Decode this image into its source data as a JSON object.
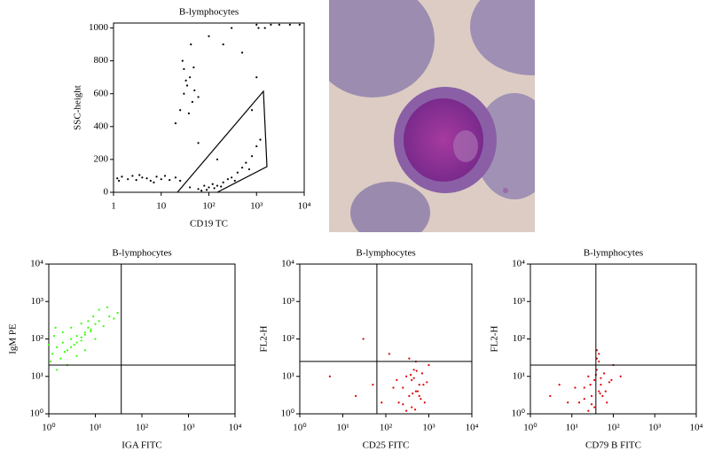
{
  "chart_data": [
    {
      "type": "scatter",
      "title": "B-lymphocytes",
      "x_label": "CD19 TC",
      "y_label": "SSC-height",
      "xscale": "log",
      "yscale": "linear",
      "xlim": [
        1,
        10000
      ],
      "ylim": [
        0,
        1030
      ],
      "xticks": [
        1,
        10,
        {
          "value": 100,
          "label": "10²"
        },
        {
          "value": 1000,
          "label": "10³"
        },
        {
          "value": 10000,
          "label": "10⁴"
        }
      ],
      "yticks": [
        0,
        200,
        400,
        600,
        800,
        1000
      ],
      "series": [
        {
          "color": "#000000",
          "x": [
            1.2,
            1.5,
            2,
            2.5,
            3,
            4,
            5,
            6,
            8,
            10,
            12,
            15,
            20,
            25,
            1.3,
            3.5,
            7,
            25,
            30,
            35,
            40,
            45,
            30,
            50,
            38,
            28,
            42,
            20,
            60,
            33,
            48,
            40,
            60,
            80,
            100,
            120,
            150,
            200,
            250,
            300,
            400,
            500,
            600,
            800,
            1000,
            1200,
            70,
            90,
            130,
            180,
            350,
            700,
            100,
            200,
            500,
            1000,
            1100,
            1500,
            300,
            800,
            60,
            150,
            1000,
            2000,
            3000,
            5000,
            8000
          ],
          "values": [
            85,
            95,
            80,
            100,
            75,
            90,
            85,
            70,
            95,
            80,
            100,
            75,
            90,
            70,
            70,
            105,
            60,
            500,
            600,
            650,
            700,
            550,
            750,
            620,
            480,
            800,
            900,
            420,
            580,
            680,
            760,
            30,
            20,
            40,
            30,
            50,
            40,
            60,
            80,
            90,
            120,
            150,
            180,
            220,
            280,
            320,
            10,
            15,
            25,
            35,
            70,
            140,
            950,
            900,
            850,
            700,
            1000,
            1000,
            1000,
            500,
            300,
            200,
            1020,
            1020,
            1020,
            1020,
            1020
          ]
        }
      ]
    },
    {
      "type": "scatter",
      "title": "B-lymphocytes",
      "x_label": "IGA FITC",
      "y_label": "IgM PE",
      "xscale": "log",
      "yscale": "log",
      "xlim": [
        1,
        10000
      ],
      "ylim": [
        1,
        10000
      ],
      "xticks": [
        {
          "value": 1,
          "label": "10⁰"
        },
        {
          "value": 10,
          "label": "10¹"
        },
        {
          "value": 100,
          "label": "10²"
        },
        {
          "value": 1000,
          "label": "10³"
        },
        {
          "value": 10000,
          "label": "10⁴"
        }
      ],
      "yticks": [
        {
          "value": 1,
          "label": "10⁰"
        },
        {
          "value": 10,
          "label": "10¹"
        },
        {
          "value": 100,
          "label": "10²"
        },
        {
          "value": 1000,
          "label": "10³"
        },
        {
          "value": 10000,
          "label": "10⁴"
        }
      ],
      "quadrant": {
        "x": 36,
        "y": 20
      },
      "series": [
        {
          "color": "#33ff00",
          "x": [
            1.2,
            1.5,
            2,
            2.5,
            3,
            3.5,
            4,
            5,
            6,
            7,
            8,
            10,
            12,
            15,
            20,
            25,
            30,
            1.1,
            1.8,
            2.2,
            3,
            4,
            5,
            6,
            8,
            10,
            1.3,
            2,
            3,
            5,
            7,
            9,
            1.5,
            2.5,
            4,
            6,
            12,
            18,
            1,
            1.4
          ],
          "values": [
            40,
            60,
            80,
            50,
            100,
            70,
            120,
            90,
            150,
            200,
            180,
            250,
            300,
            220,
            400,
            350,
            500,
            25,
            30,
            45,
            60,
            80,
            110,
            130,
            160,
            100,
            120,
            150,
            200,
            260,
            300,
            400,
            15,
            20,
            35,
            50,
            600,
            700,
            70,
            200
          ]
        }
      ]
    },
    {
      "type": "scatter",
      "title": "B-lymphocytes",
      "x_label": "CD25 FITC",
      "y_label": "FL2-H",
      "xscale": "log",
      "yscale": "log",
      "xlim": [
        1,
        10000
      ],
      "ylim": [
        1,
        10000
      ],
      "xticks": [
        {
          "value": 1,
          "label": "10⁰"
        },
        {
          "value": 10,
          "label": "10¹"
        },
        {
          "value": 100,
          "label": "10²"
        },
        {
          "value": 1000,
          "label": "10³"
        },
        {
          "value": 10000,
          "label": "10⁴"
        }
      ],
      "yticks": [
        {
          "value": 1,
          "label": "10⁰"
        },
        {
          "value": 10,
          "label": "10¹"
        },
        {
          "value": 100,
          "label": "10²"
        },
        {
          "value": 1000,
          "label": "10³"
        },
        {
          "value": 10000,
          "label": "10⁴"
        }
      ],
      "quadrant": {
        "x": 62,
        "y": 25
      },
      "series": [
        {
          "color": "#dd0000",
          "x": [
            200,
            250,
            300,
            350,
            400,
            450,
            500,
            600,
            700,
            800,
            900,
            1000,
            300,
            400,
            500,
            600,
            250,
            350,
            450,
            550,
            650,
            750,
            380,
            420,
            480,
            520,
            150,
            180,
            20,
            50,
            5,
            80,
            120,
            30
          ],
          "values": [
            2,
            5,
            10,
            3,
            8,
            15,
            4,
            6,
            12,
            2,
            7,
            20,
            1.2,
            1.5,
            25,
            3,
            1.8,
            30,
            9,
            4,
            2.5,
            6,
            11,
            3.5,
            1.3,
            14,
            5,
            8,
            3,
            6,
            10,
            2,
            40,
            100
          ]
        }
      ]
    },
    {
      "type": "scatter",
      "title": "B-lymphocytes",
      "x_label": "CD79 B FITC",
      "y_label": "FL2-H",
      "xscale": "log",
      "yscale": "log",
      "xlim": [
        1,
        10000
      ],
      "ylim": [
        1,
        10000
      ],
      "xticks": [
        {
          "value": 1,
          "label": "10⁰"
        },
        {
          "value": 10,
          "label": "10¹"
        },
        {
          "value": 100,
          "label": "10²"
        },
        {
          "value": 1000,
          "label": "10³"
        },
        {
          "value": 10000,
          "label": "10⁴"
        }
      ],
      "yticks": [
        {
          "value": 1,
          "label": "10⁰"
        },
        {
          "value": 10,
          "label": "10¹"
        },
        {
          "value": 100,
          "label": "10²"
        },
        {
          "value": 1000,
          "label": "10³"
        },
        {
          "value": 10000,
          "label": "10⁴"
        }
      ],
      "quadrant": {
        "x": 38,
        "y": 20
      },
      "series": [
        {
          "color": "#dd0000",
          "x": [
            15,
            20,
            25,
            30,
            35,
            40,
            45,
            50,
            60,
            70,
            80,
            100,
            25,
            35,
            45,
            55,
            30,
            40,
            50,
            65,
            20,
            28,
            38,
            48,
            12,
            90,
            3,
            5,
            8,
            150,
            40,
            45
          ],
          "values": [
            2,
            5,
            10,
            3,
            8,
            15,
            4,
            6,
            12,
            2,
            7,
            20,
            1.2,
            1.5,
            25,
            3,
            1.8,
            30,
            9,
            4,
            2.5,
            6,
            11,
            3.5,
            5,
            8,
            3,
            6,
            2,
            10,
            50,
            40
          ]
        }
      ]
    }
  ]
}
